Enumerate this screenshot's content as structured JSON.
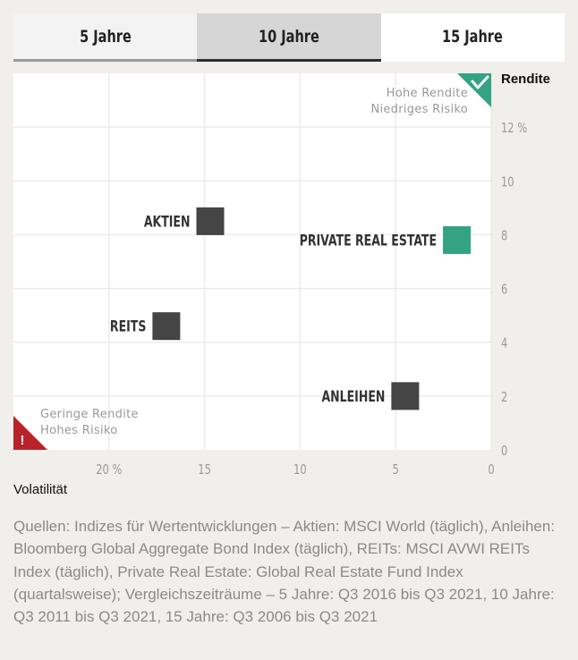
{
  "tabs": [
    {
      "label": "5 Jahre"
    },
    {
      "label": "10 Jahre"
    },
    {
      "label": "15 Jahre"
    }
  ],
  "chart_data": {
    "type": "scatter",
    "xlabel": "Volatilität",
    "ylabel": "Rendite",
    "xlim": [
      25,
      0
    ],
    "ylim": [
      0,
      14
    ],
    "x_ticks": [
      {
        "value": 20,
        "label": "20 %"
      },
      {
        "value": 15,
        "label": "15"
      },
      {
        "value": 10,
        "label": "10"
      },
      {
        "value": 5,
        "label": "5"
      },
      {
        "value": 0,
        "label": "0"
      }
    ],
    "y_ticks": [
      {
        "value": 0,
        "label": "0"
      },
      {
        "value": 2,
        "label": "2"
      },
      {
        "value": 4,
        "label": "4"
      },
      {
        "value": 6,
        "label": "6"
      },
      {
        "value": 8,
        "label": "8"
      },
      {
        "value": 10,
        "label": "10"
      },
      {
        "value": 12,
        "label": "12 %"
      }
    ],
    "grid": true,
    "points": [
      {
        "name": "AKTIEN",
        "x": 14.7,
        "y": 8.5,
        "color": "#454545"
      },
      {
        "name": "PRIVATE REAL ESTATE",
        "x": 1.8,
        "y": 7.8,
        "color": "#33a384"
      },
      {
        "name": "REITS",
        "x": 17.0,
        "y": 4.6,
        "color": "#454545"
      },
      {
        "name": "ANLEIHEN",
        "x": 4.5,
        "y": 2.0,
        "color": "#454545"
      }
    ],
    "annotations": {
      "top_right": {
        "line1": "Hohe Rendite",
        "line2": "Niedriges Risiko",
        "color": "#33a384"
      },
      "bottom_left": {
        "line1": "Geringe Rendite",
        "line2": "Hohes Risiko",
        "color": "#b8232b"
      }
    }
  },
  "footer": {
    "source": "Quellen: Indizes für Wertentwicklungen – Aktien: MSCI World (täglich), Anleihen: Bloomberg Global Aggregate Bond Index (täglich), REITs: MSCI AVWI REITs Index (täglich), Private Real Estate: Global Real Estate Fund Index (quartalsweise); Vergleichszeiträume – 5 Jahre: Q3 2016 bis Q3 2021, 10 Jahre: Q3 2011 bis Q3 2021, 15 Jahre: Q3 2006 bis Q3 2021"
  }
}
